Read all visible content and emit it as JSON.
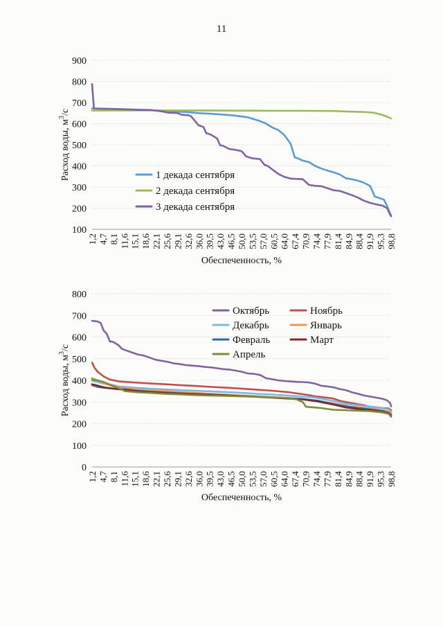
{
  "page": {
    "number": "11"
  },
  "chart_data": [
    {
      "type": "line",
      "title": "",
      "xlabel": "Обеспеченность, %",
      "ylabel": "Расход воды, м³/с",
      "ylabel_parts": {
        "text": "Расход воды, м",
        "sup": "3",
        "tail": "/с"
      },
      "ylim": [
        100,
        900
      ],
      "yticks": [
        100,
        200,
        300,
        400,
        500,
        600,
        700,
        800,
        900
      ],
      "xlim": [
        1.2,
        98.8
      ],
      "xtick_labels": [
        "1,2",
        "4,7",
        "8,1",
        "11,6",
        "15,1",
        "18,6",
        "22,1",
        "25,6",
        "29,1",
        "32,6",
        "36,0",
        "39,5",
        "43,0",
        "46,5",
        "50,0",
        "53,5",
        "57,0",
        "60,5",
        "64,0",
        "67,4",
        "70,9",
        "74,4",
        "77,9",
        "81,4",
        "84,9",
        "88,4",
        "91,9",
        "95,3",
        "98,8"
      ],
      "grid": true,
      "legend": "inside, lower-left",
      "series": [
        {
          "name": "1 декада сентября",
          "color": "#5b9bd5",
          "x": [
            1.2,
            5,
            10,
            15,
            20,
            24,
            28,
            32,
            36,
            40,
            44,
            48,
            52,
            56,
            58,
            60,
            62,
            64,
            66,
            67.4,
            68.5,
            70,
            72,
            74,
            76,
            78,
            80,
            82,
            84,
            86,
            88,
            90,
            92,
            93.5,
            95,
            96.5,
            97.5,
            98.2,
            98.8
          ],
          "y": [
            672,
            670,
            669,
            667,
            665,
            660,
            657,
            655,
            650,
            647,
            643,
            638,
            630,
            612,
            600,
            582,
            570,
            545,
            505,
            440,
            435,
            425,
            418,
            400,
            388,
            378,
            370,
            360,
            342,
            337,
            330,
            320,
            305,
            255,
            248,
            240,
            210,
            185,
            165
          ]
        },
        {
          "name": "2 декада сентября",
          "color": "#9bbb59",
          "x": [
            1.2,
            20,
            40,
            60,
            70,
            80,
            85,
            90,
            93,
            95,
            97,
            98.8
          ],
          "y": [
            662,
            663,
            662,
            661,
            661,
            660,
            657,
            655,
            652,
            645,
            636,
            625
          ]
        },
        {
          "name": "3 декада сентября",
          "color": "#8064a2",
          "x": [
            1.2,
            1.8,
            4,
            8,
            12,
            16,
            20,
            22,
            24,
            26,
            28,
            29.1,
            30.5,
            32.6,
            33.5,
            36,
            37.5,
            38.5,
            40,
            42,
            43,
            44,
            46,
            48,
            50,
            51.5,
            53.5,
            56,
            57.5,
            58.5,
            60.5,
            62,
            64,
            66,
            70,
            72,
            74,
            76,
            78,
            80,
            82,
            84,
            86,
            88,
            90,
            92,
            94,
            96,
            97.5,
            98.3,
            98.8
          ],
          "y": [
            788,
            672,
            671,
            670,
            668,
            665,
            664,
            662,
            658,
            652,
            651,
            650,
            642,
            640,
            635,
            592,
            585,
            555,
            548,
            530,
            498,
            495,
            480,
            476,
            470,
            445,
            436,
            432,
            405,
            400,
            378,
            362,
            348,
            340,
            337,
            310,
            306,
            304,
            295,
            285,
            282,
            272,
            262,
            250,
            235,
            225,
            218,
            212,
            200,
            175,
            162
          ]
        }
      ]
    },
    {
      "type": "line",
      "title": "",
      "xlabel": "Обеспеченность, %",
      "ylabel": "Расход воды, м³/с",
      "ylabel_parts": {
        "text": "Расход воды, м",
        "sup": "3",
        "tail": "/с"
      },
      "ylim": [
        0,
        800
      ],
      "yticks": [
        0,
        100,
        200,
        300,
        400,
        500,
        600,
        700,
        800
      ],
      "xlim": [
        1.2,
        98.8
      ],
      "xtick_labels": [
        "1,2",
        "4,7",
        "8,1",
        "11,6",
        "15,1",
        "18,6",
        "22,1",
        "25,6",
        "29,1",
        "32,6",
        "36,0",
        "39,5",
        "43,0",
        "46,5",
        "50,0",
        "53,5",
        "57,0",
        "60,5",
        "64,0",
        "67,4",
        "70,9",
        "74,4",
        "77,9",
        "81,4",
        "84,9",
        "88,4",
        "91,9",
        "95,3",
        "98,8"
      ],
      "grid": true,
      "legend": "inside, top-right",
      "series": [
        {
          "name": "Октябрь",
          "color": "#8064a2",
          "x": [
            1.2,
            3,
            4,
            5,
            6,
            7,
            8,
            9,
            10,
            11,
            12,
            14,
            16,
            18,
            20,
            22,
            24,
            26,
            28,
            30,
            32,
            34,
            36,
            38,
            40,
            42,
            44,
            46,
            48,
            50,
            52,
            54,
            56,
            58,
            60,
            62,
            64,
            66,
            68,
            70,
            72,
            74,
            76,
            78,
            80,
            82,
            84,
            86,
            88,
            90,
            92,
            94,
            96,
            97.5,
            98.5,
            98.8
          ],
          "y": [
            675,
            672,
            665,
            630,
            615,
            580,
            578,
            570,
            560,
            545,
            540,
            530,
            520,
            515,
            505,
            495,
            490,
            485,
            478,
            475,
            470,
            468,
            466,
            462,
            460,
            456,
            452,
            450,
            445,
            440,
            432,
            430,
            425,
            410,
            405,
            400,
            397,
            395,
            393,
            392,
            390,
            385,
            375,
            372,
            368,
            360,
            355,
            345,
            338,
            330,
            325,
            320,
            315,
            308,
            295,
            280
          ]
        },
        {
          "name": "Ноябрь",
          "color": "#c0504d",
          "x": [
            1.2,
            2,
            3,
            5,
            7,
            10,
            15,
            20,
            25,
            30,
            35,
            40,
            45,
            50,
            55,
            60,
            65,
            68,
            70,
            72,
            74,
            76,
            78,
            80,
            82,
            84,
            86,
            88,
            90,
            92,
            94,
            96,
            98,
            98.8
          ],
          "y": [
            482,
            458,
            440,
            418,
            404,
            395,
            390,
            386,
            382,
            378,
            374,
            370,
            366,
            362,
            357,
            352,
            346,
            340,
            336,
            332,
            326,
            323,
            320,
            316,
            306,
            300,
            295,
            290,
            285,
            278,
            275,
            272,
            270,
            262
          ]
        },
        {
          "name": "Декабрь",
          "color": "#7ab8e6",
          "x": [
            1.2,
            3,
            5,
            8,
            10,
            15,
            20,
            25,
            30,
            35,
            40,
            45,
            50,
            55,
            60,
            65,
            70,
            73,
            75,
            78,
            80,
            84,
            86,
            90,
            94,
            98,
            98.8
          ],
          "y": [
            398,
            392,
            385,
            378,
            372,
            366,
            362,
            358,
            355,
            352,
            349,
            346,
            342,
            338,
            334,
            330,
            325,
            322,
            318,
            310,
            305,
            292,
            288,
            282,
            276,
            266,
            256
          ]
        },
        {
          "name": "Январь",
          "color": "#f79646",
          "x": [
            1.2,
            3,
            5,
            8,
            12,
            16,
            20,
            25,
            30,
            35,
            40,
            45,
            50,
            55,
            60,
            65,
            70,
            75,
            80,
            85,
            88,
            92,
            96,
            98,
            98.8
          ],
          "y": [
            410,
            400,
            388,
            372,
            364,
            358,
            354,
            350,
            346,
            342,
            338,
            334,
            330,
            326,
            322,
            318,
            313,
            305,
            294,
            280,
            276,
            270,
            262,
            255,
            248
          ]
        },
        {
          "name": "Февраль",
          "color": "#2e65a8",
          "x": [
            1.2,
            3,
            5,
            8,
            12,
            16,
            20,
            25,
            30,
            35,
            40,
            45,
            50,
            55,
            60,
            65,
            70,
            75,
            80,
            85,
            88,
            92,
            96,
            98,
            98.8
          ],
          "y": [
            378,
            370,
            366,
            362,
            358,
            352,
            348,
            344,
            340,
            337,
            334,
            331,
            328,
            325,
            322,
            318,
            314,
            306,
            290,
            278,
            272,
            266,
            258,
            250,
            240
          ]
        },
        {
          "name": "Март",
          "color": "#7b2c2a",
          "x": [
            1.2,
            3,
            5,
            8,
            12,
            16,
            20,
            25,
            30,
            35,
            40,
            45,
            50,
            55,
            60,
            65,
            70,
            75,
            80,
            84,
            88,
            92,
            96,
            98,
            98.8
          ],
          "y": [
            382,
            376,
            368,
            362,
            356,
            350,
            346,
            342,
            339,
            336,
            333,
            330,
            327,
            324,
            320,
            316,
            312,
            302,
            288,
            275,
            268,
            262,
            255,
            248,
            238
          ]
        },
        {
          "name": "Апрель",
          "color": "#7f8a3a",
          "x": [
            1.2,
            3,
            5,
            8,
            12,
            16,
            20,
            25,
            30,
            35,
            40,
            45,
            50,
            55,
            60,
            65,
            68,
            70,
            71,
            73,
            76,
            80,
            84,
            88,
            92,
            96,
            98,
            98.8
          ],
          "y": [
            404,
            400,
            392,
            375,
            350,
            345,
            342,
            338,
            335,
            332,
            330,
            328,
            326,
            324,
            322,
            318,
            312,
            300,
            278,
            276,
            272,
            264,
            262,
            260,
            258,
            252,
            245,
            232
          ]
        }
      ]
    }
  ]
}
